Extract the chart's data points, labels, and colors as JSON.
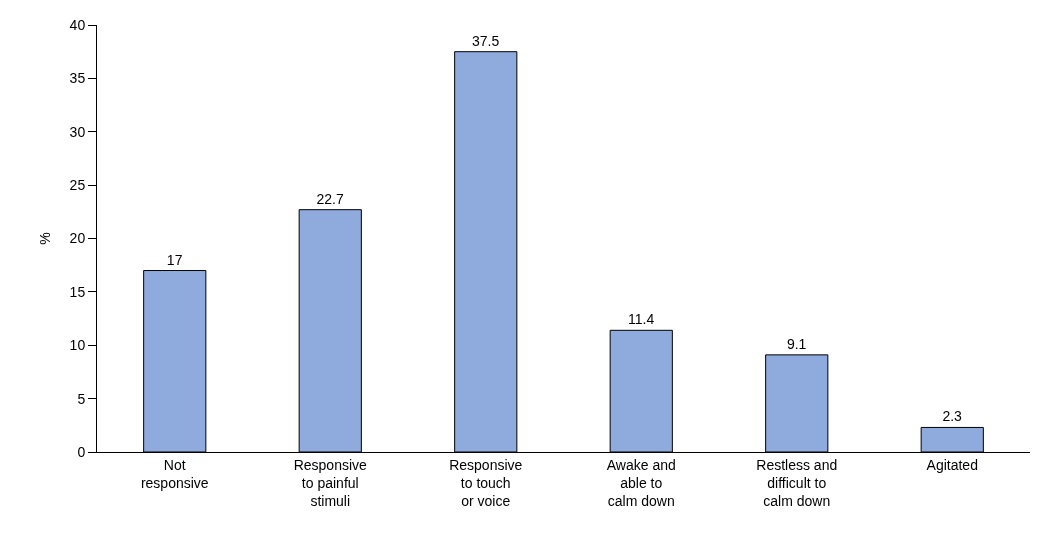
{
  "chart_data": {
    "type": "bar",
    "ylabel": "%",
    "categories": [
      "Not\nresponsive",
      "Responsive\nto painful\nstimuli",
      "Responsive\nto touch\nor voice",
      "Awake and\nable to\ncalm down",
      "Restless and\ndifficult to\ncalm down",
      "Agitated"
    ],
    "values": [
      17,
      22.7,
      37.5,
      11.4,
      9.1,
      2.3
    ],
    "color": "#8faadc",
    "ylim": [
      0,
      40
    ],
    "yticks": [
      0,
      5,
      10,
      15,
      20,
      25,
      30,
      35,
      40
    ],
    "data_labels": true
  }
}
